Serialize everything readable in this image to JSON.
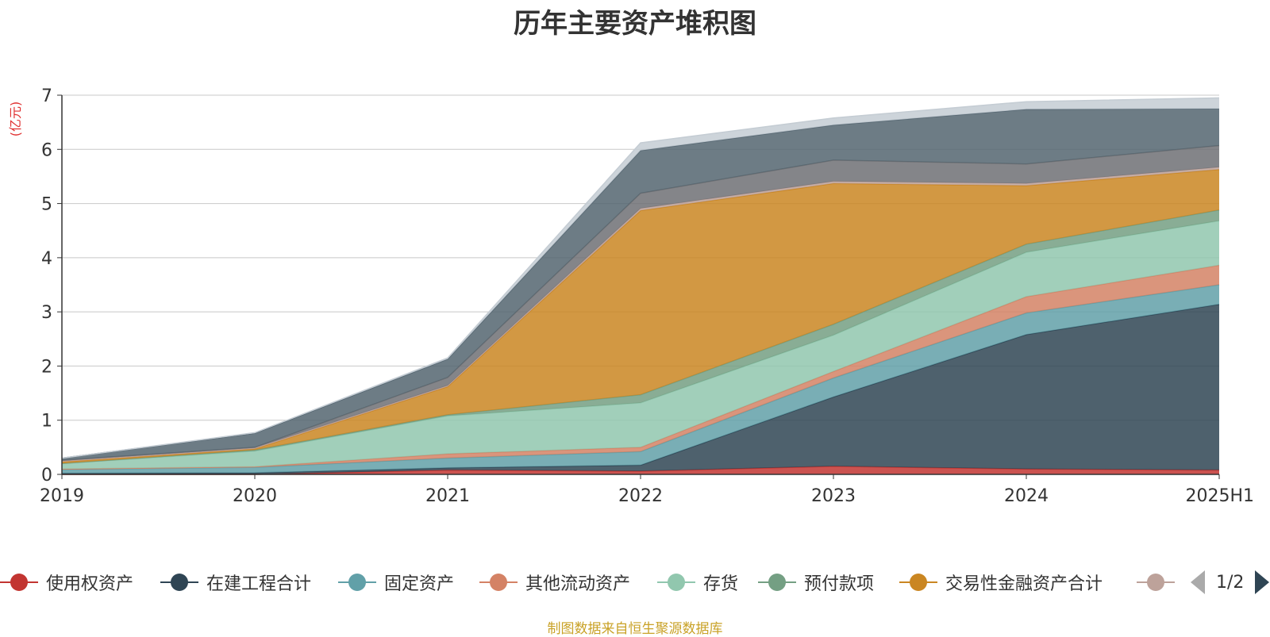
{
  "footer_text": "制图数据来自恒生聚源数据库",
  "pager": {
    "text": "1/2"
  },
  "chart_data": {
    "type": "area",
    "stacked": true,
    "title": "历年主要资产堆积图",
    "ylabel": "(亿元)",
    "xlabel": "",
    "ylim": [
      0,
      7
    ],
    "yticks": [
      0,
      1,
      2,
      3,
      4,
      5,
      6,
      7
    ],
    "grid": true,
    "legend_position": "bottom",
    "categories": [
      "2019",
      "2020",
      "2021",
      "2022",
      "2023",
      "2024",
      "2025H1"
    ],
    "series": [
      {
        "name": "使用权资产",
        "color": "#c23531",
        "legend": true,
        "values": [
          0.0,
          0.0,
          0.08,
          0.06,
          0.15,
          0.1,
          0.08
        ]
      },
      {
        "name": "在建工程合计",
        "color": "#2f4554",
        "legend": true,
        "values": [
          0.02,
          0.03,
          0.04,
          0.11,
          1.28,
          2.48,
          3.06
        ]
      },
      {
        "name": "固定资产",
        "color": "#61a0a8",
        "legend": true,
        "values": [
          0.07,
          0.1,
          0.18,
          0.25,
          0.35,
          0.4,
          0.36
        ]
      },
      {
        "name": "其他流动资产",
        "color": "#d48265",
        "legend": true,
        "values": [
          0.01,
          0.01,
          0.08,
          0.08,
          0.12,
          0.3,
          0.36
        ]
      },
      {
        "name": "存货",
        "color": "#91c7ae",
        "legend": true,
        "values": [
          0.1,
          0.29,
          0.7,
          0.82,
          0.67,
          0.82,
          0.82
        ]
      },
      {
        "name": "预付款项",
        "color": "#749f83",
        "legend": true,
        "values": [
          0.0,
          0.02,
          0.02,
          0.15,
          0.2,
          0.15,
          0.2
        ]
      },
      {
        "name": "交易性金融资产合计",
        "color": "#ca8622",
        "legend": true,
        "values": [
          0.03,
          0.02,
          0.52,
          3.4,
          2.6,
          1.08,
          0.75
        ]
      },
      {
        "name": "",
        "color": "#bda29a",
        "legend": true,
        "values": [
          0.02,
          0.02,
          0.02,
          0.04,
          0.04,
          0.04,
          0.04
        ]
      },
      {
        "name": "",
        "color": "#6e7074",
        "legend": false,
        "values": [
          0.01,
          0.01,
          0.15,
          0.28,
          0.39,
          0.36,
          0.4
        ]
      },
      {
        "name": "",
        "color": "#546570",
        "legend": false,
        "values": [
          0.04,
          0.26,
          0.34,
          0.79,
          0.65,
          1.01,
          0.68
        ]
      },
      {
        "name": "",
        "color": "#c4ccd3",
        "legend": false,
        "values": [
          0.0,
          0.01,
          0.02,
          0.14,
          0.13,
          0.14,
          0.2
        ]
      }
    ]
  }
}
